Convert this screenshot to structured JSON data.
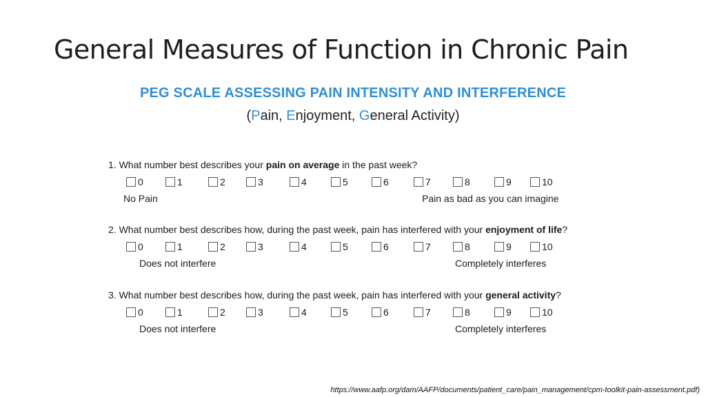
{
  "slide": {
    "title": "General Measures of Function in Chronic Pain",
    "source": "https://www.aafp.org/dam/AAFP/documents/patient_care/pain_management/cpm-toolkit-pain-assessment.pdf)"
  },
  "peg": {
    "title": "PEG SCALE ASSESSING PAIN INTENSITY AND INTERFERENCE",
    "subtitle": {
      "open": "(",
      "p": "P",
      "ain": "ain, ",
      "e": "E",
      "njoyment": "njoyment, ",
      "g": "G",
      "eneral": "eneral Activity)"
    }
  },
  "questions": [
    {
      "prefix": "1. What number best describes your ",
      "emphasis": "pain on average",
      "suffix": " in the past week?",
      "left_anchor": "No Pain",
      "right_anchor": "Pain as bad as you can imagine",
      "selected": null
    },
    {
      "prefix": "2. What number best describes how, during the past week, pain has interfered with your ",
      "emphasis": "enjoyment of life",
      "suffix": "?",
      "left_anchor": "Does not interfere",
      "right_anchor": "Completely interferes",
      "selected": null
    },
    {
      "prefix": "3. What number best describes how, during the past week, pain has interfered with your ",
      "emphasis": "general activity",
      "suffix": "?",
      "left_anchor": "Does not interfere",
      "right_anchor": "Completely interferes",
      "selected": null
    }
  ],
  "scale_options": [
    "0",
    "1",
    "2",
    "3",
    "4",
    "5",
    "6",
    "7",
    "8",
    "9",
    "10"
  ],
  "colors": {
    "accent": "#2f8fd0",
    "text": "#1a1a1a"
  }
}
